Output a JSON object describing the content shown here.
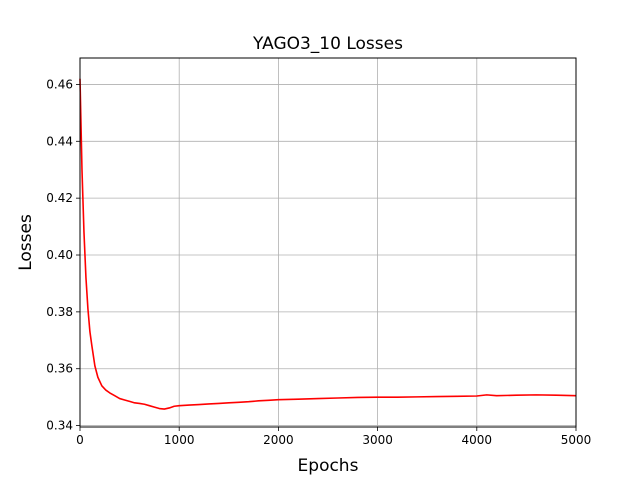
{
  "chart_data": {
    "type": "line",
    "title": "YAGO3_10 Losses",
    "xlabel": "Epochs",
    "ylabel": "Losses",
    "xlim": [
      0,
      5000
    ],
    "ylim": [
      0.3395,
      0.4693
    ],
    "xticks": [
      0,
      1000,
      2000,
      3000,
      4000,
      5000
    ],
    "xtick_labels": [
      "0",
      "1000",
      "2000",
      "3000",
      "4000",
      "5000"
    ],
    "yticks": [
      0.34,
      0.36,
      0.38,
      0.4,
      0.42,
      0.44,
      0.46
    ],
    "ytick_labels": [
      "0.34",
      "0.36",
      "0.38",
      "0.40",
      "0.42",
      "0.44",
      "0.46"
    ],
    "grid": true,
    "series": [
      {
        "color": "#ff0000",
        "x": [
          0,
          20,
          40,
          60,
          80,
          100,
          120,
          150,
          180,
          220,
          260,
          300,
          350,
          400,
          450,
          500,
          550,
          600,
          650,
          700,
          750,
          800,
          850,
          900,
          950,
          1000,
          1100,
          1200,
          1300,
          1400,
          1500,
          1600,
          1700,
          1800,
          1900,
          2000,
          2200,
          2400,
          2600,
          2800,
          3000,
          3200,
          3400,
          3600,
          3800,
          4000,
          4100,
          4200,
          4400,
          4600,
          4800,
          5000
        ],
        "y": [
          0.462,
          0.43,
          0.408,
          0.392,
          0.381,
          0.373,
          0.368,
          0.361,
          0.357,
          0.354,
          0.3525,
          0.3515,
          0.3505,
          0.3495,
          0.349,
          0.3485,
          0.348,
          0.3478,
          0.3475,
          0.347,
          0.3465,
          0.346,
          0.3458,
          0.3462,
          0.3468,
          0.347,
          0.3472,
          0.3474,
          0.3476,
          0.3478,
          0.348,
          0.3482,
          0.3484,
          0.3487,
          0.3489,
          0.3491,
          0.3493,
          0.3495,
          0.3497,
          0.3499,
          0.35,
          0.35,
          0.3501,
          0.3502,
          0.3503,
          0.3504,
          0.3508,
          0.3505,
          0.3507,
          0.3508,
          0.3507,
          0.3505
        ]
      }
    ]
  }
}
